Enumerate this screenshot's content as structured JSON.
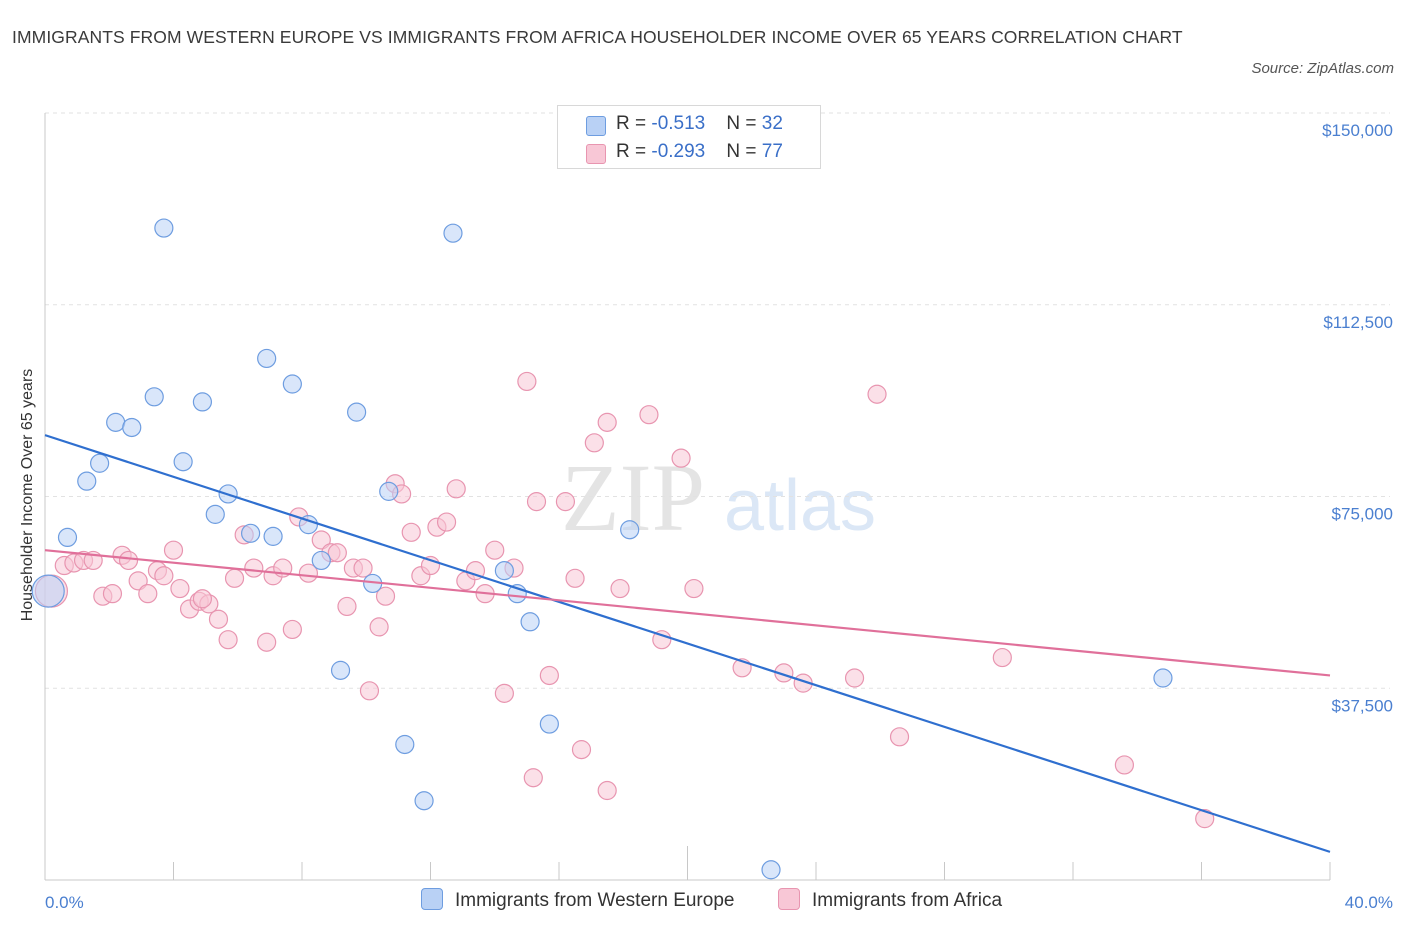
{
  "title": "IMMIGRANTS FROM WESTERN EUROPE VS IMMIGRANTS FROM AFRICA HOUSEHOLDER INCOME OVER 65 YEARS CORRELATION CHART",
  "source": "Source: ZipAtlas.com",
  "watermark": {
    "zip": "ZIP",
    "atlas": "atlas"
  },
  "colors": {
    "western_europe_fill": "#b9d1f5",
    "western_europe_stroke": "#6e9de0",
    "western_europe_line": "#2f6fcf",
    "africa_fill": "#f8c7d6",
    "africa_stroke": "#e895b0",
    "africa_line": "#e0709a",
    "tick_text": "#4a7fd0"
  },
  "legend": {
    "rows": [
      {
        "r_label": "R = ",
        "r_value": "-0.513",
        "n_label": "N = ",
        "n_value": "32"
      },
      {
        "r_label": "R = ",
        "r_value": "-0.293",
        "n_label": "N = ",
        "n_value": "77"
      }
    ]
  },
  "chart_data": {
    "type": "scatter",
    "title": "IMMIGRANTS FROM WESTERN EUROPE VS IMMIGRANTS FROM AFRICA HOUSEHOLDER INCOME OVER 65 YEARS CORRELATION CHART",
    "xlabel": "",
    "ylabel": "Householder Income Over 65 years",
    "xlim": [
      0,
      40
    ],
    "ylim": [
      0,
      150000
    ],
    "x_tick_labels": [
      "0.0%",
      "40.0%"
    ],
    "y_ticks": [
      37500,
      75000,
      112500,
      150000
    ],
    "y_tick_labels": [
      "$37,500",
      "$75,000",
      "$112,500",
      "$150,000"
    ],
    "grid": "horizontal dashed",
    "legend_placement": "top-center",
    "series": [
      {
        "name": "Immigrants from Western Europe",
        "trend": {
          "x": [
            0,
            40
          ],
          "y": [
            87000,
            5500
          ]
        },
        "points": [
          [
            0.1,
            56500
          ],
          [
            0.7,
            67000
          ],
          [
            1.3,
            78000
          ],
          [
            1.7,
            81500
          ],
          [
            2.2,
            89500
          ],
          [
            2.7,
            88500
          ],
          [
            3.4,
            94500
          ],
          [
            3.7,
            127500
          ],
          [
            4.3,
            81800
          ],
          [
            4.9,
            93500
          ],
          [
            5.3,
            71500
          ],
          [
            5.7,
            75500
          ],
          [
            6.4,
            67800
          ],
          [
            6.9,
            102000
          ],
          [
            7.1,
            67200
          ],
          [
            7.7,
            97000
          ],
          [
            8.2,
            69500
          ],
          [
            8.6,
            62500
          ],
          [
            9.2,
            41000
          ],
          [
            9.7,
            91500
          ],
          [
            10.2,
            58000
          ],
          [
            10.7,
            76000
          ],
          [
            11.2,
            26500
          ],
          [
            11.8,
            15500
          ],
          [
            12.7,
            126500
          ],
          [
            14.3,
            60500
          ],
          [
            14.7,
            56000
          ],
          [
            15.1,
            50500
          ],
          [
            15.7,
            30500
          ],
          [
            18.2,
            68500
          ],
          [
            22.6,
            2000
          ],
          [
            34.8,
            39500
          ]
        ]
      },
      {
        "name": "Immigrants from Africa",
        "trend": {
          "x": [
            0,
            40
          ],
          "y": [
            64500,
            40000
          ]
        },
        "points": [
          [
            0.2,
            56500
          ],
          [
            0.6,
            61500
          ],
          [
            0.9,
            62000
          ],
          [
            1.2,
            62500
          ],
          [
            1.5,
            62500
          ],
          [
            1.8,
            55500
          ],
          [
            2.1,
            56000
          ],
          [
            2.4,
            63500
          ],
          [
            2.6,
            62500
          ],
          [
            2.9,
            58500
          ],
          [
            3.2,
            56000
          ],
          [
            3.5,
            60500
          ],
          [
            3.7,
            59500
          ],
          [
            4.0,
            64500
          ],
          [
            4.2,
            57000
          ],
          [
            4.5,
            53000
          ],
          [
            4.8,
            54500
          ],
          [
            5.1,
            54000
          ],
          [
            5.4,
            51000
          ],
          [
            5.7,
            47000
          ],
          [
            5.9,
            59000
          ],
          [
            6.2,
            67500
          ],
          [
            6.5,
            61000
          ],
          [
            6.9,
            46500
          ],
          [
            7.1,
            59500
          ],
          [
            7.4,
            61000
          ],
          [
            7.7,
            49000
          ],
          [
            7.9,
            71000
          ],
          [
            8.2,
            60000
          ],
          [
            8.6,
            66500
          ],
          [
            8.9,
            64000
          ],
          [
            9.1,
            64000
          ],
          [
            9.4,
            53500
          ],
          [
            9.6,
            61000
          ],
          [
            9.9,
            61000
          ],
          [
            10.1,
            37000
          ],
          [
            10.4,
            49500
          ],
          [
            10.6,
            55500
          ],
          [
            10.9,
            77500
          ],
          [
            11.1,
            75500
          ],
          [
            11.4,
            68000
          ],
          [
            11.7,
            59500
          ],
          [
            12.0,
            61500
          ],
          [
            12.2,
            69000
          ],
          [
            12.5,
            70000
          ],
          [
            12.8,
            76500
          ],
          [
            13.1,
            58500
          ],
          [
            13.4,
            60500
          ],
          [
            13.7,
            56000
          ],
          [
            14.0,
            64500
          ],
          [
            14.3,
            36500
          ],
          [
            14.6,
            61000
          ],
          [
            15.0,
            97500
          ],
          [
            15.3,
            74000
          ],
          [
            15.2,
            20000
          ],
          [
            15.7,
            40000
          ],
          [
            16.2,
            74000
          ],
          [
            16.5,
            59000
          ],
          [
            16.7,
            25500
          ],
          [
            17.1,
            85500
          ],
          [
            17.5,
            89500
          ],
          [
            17.5,
            17500
          ],
          [
            17.9,
            57000
          ],
          [
            18.8,
            91000
          ],
          [
            19.2,
            47000
          ],
          [
            19.8,
            82500
          ],
          [
            20.2,
            57000
          ],
          [
            21.7,
            41500
          ],
          [
            23.0,
            40500
          ],
          [
            23.6,
            38500
          ],
          [
            25.2,
            39500
          ],
          [
            25.9,
            95000
          ],
          [
            26.6,
            28000
          ],
          [
            29.8,
            43500
          ],
          [
            33.6,
            22500
          ],
          [
            36.1,
            12000
          ],
          [
            4.9,
            55000
          ]
        ]
      }
    ]
  }
}
